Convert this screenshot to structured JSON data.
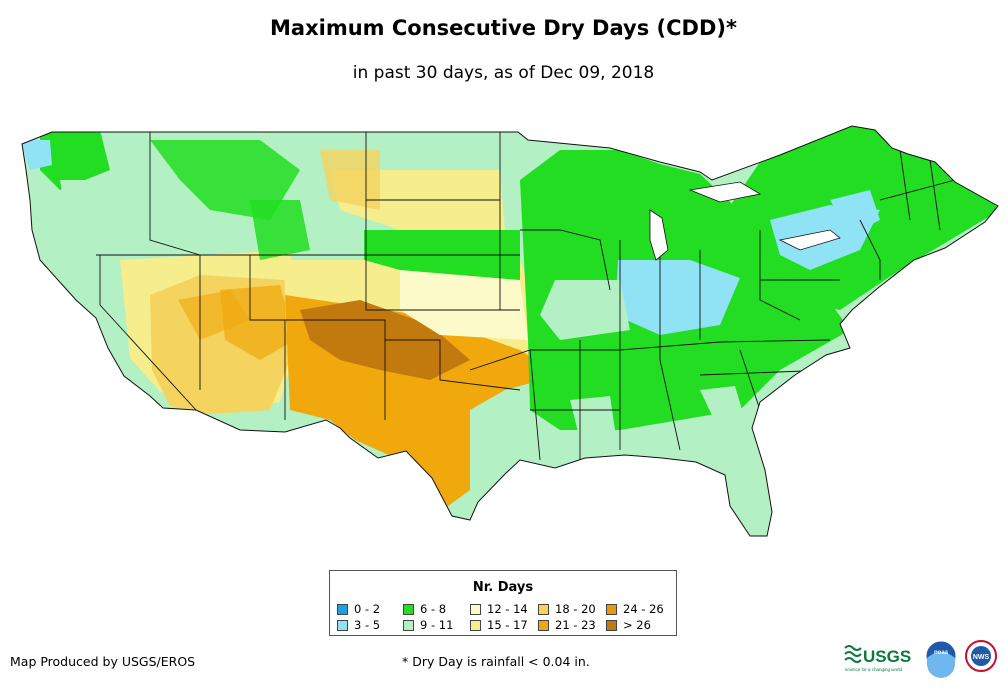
{
  "title": "Maximum Consecutive Dry Days (CDD)*",
  "subtitle": "in past 30 days, as of Dec 09, 2018",
  "legend": {
    "title": "Nr. Days",
    "items": [
      {
        "label": "0 - 2",
        "color": "#1da1e6"
      },
      {
        "label": "3 - 5",
        "color": "#8fe3f5"
      },
      {
        "label": "6 - 8",
        "color": "#22dd22"
      },
      {
        "label": "9 - 11",
        "color": "#b3f0c4"
      },
      {
        "label": "12 - 14",
        "color": "#fbfac8"
      },
      {
        "label": "15 - 17",
        "color": "#f6ee8c"
      },
      {
        "label": "18 - 20",
        "color": "#f5d35f"
      },
      {
        "label": "21 - 23",
        "color": "#f0a80c"
      },
      {
        "label": "24 - 26",
        "color": "#e39a10"
      },
      {
        "label": "> 26",
        "color": "#c27a0f"
      }
    ]
  },
  "credit": "Map Produced by USGS/EROS",
  "footnote": "* Dry Day is rainfall < 0.04 in.",
  "logos": {
    "usgs_text": "USGS",
    "usgs_tagline": "science for a changing world",
    "noaa_text": "noaa",
    "nws_text": "NWS"
  }
}
